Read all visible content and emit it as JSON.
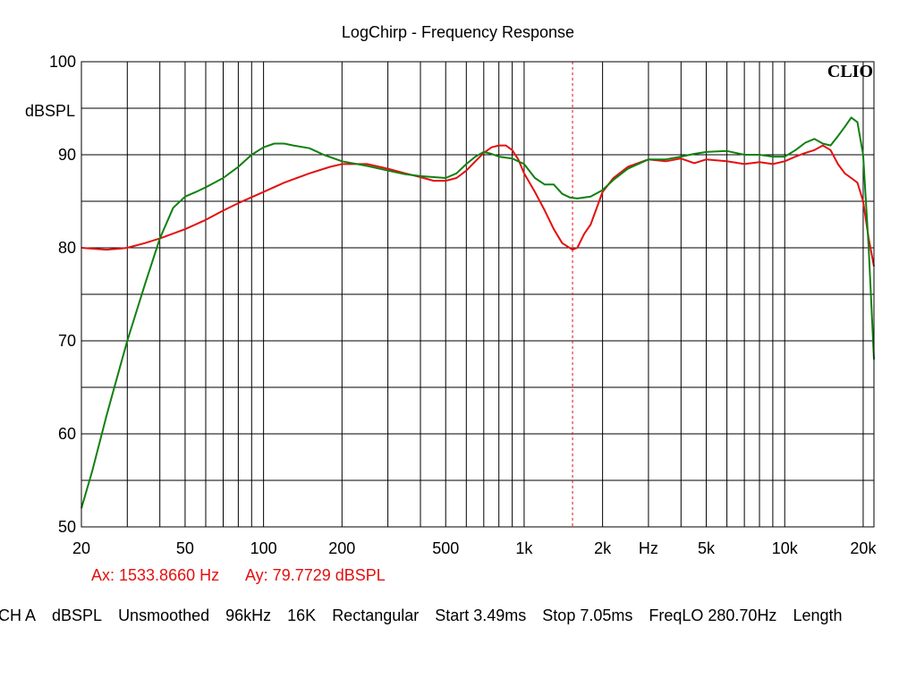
{
  "chart_data": {
    "type": "line",
    "title": "LogChirp - Frequency Response",
    "ylabel": "dBSPL",
    "xlabel": "",
    "x_scale": "log",
    "xlim": [
      20,
      22000
    ],
    "ylim": [
      50,
      100
    ],
    "grid": true,
    "y_ticks": [
      50,
      60,
      70,
      80,
      90,
      100
    ],
    "x_tick_labels": [
      {
        "value": 20,
        "label": "20"
      },
      {
        "value": 50,
        "label": "50"
      },
      {
        "value": 100,
        "label": "100"
      },
      {
        "value": 200,
        "label": "200"
      },
      {
        "value": 500,
        "label": "500"
      },
      {
        "value": 1000,
        "label": "1k"
      },
      {
        "value": 2000,
        "label": "2k"
      },
      {
        "value": 3000,
        "label": "Hz"
      },
      {
        "value": 5000,
        "label": "5k"
      },
      {
        "value": 10000,
        "label": "10k"
      },
      {
        "value": 20000,
        "label": "20k"
      }
    ],
    "series": [
      {
        "color": "#e31010",
        "points": [
          [
            20,
            80
          ],
          [
            22,
            79.9
          ],
          [
            25,
            79.8
          ],
          [
            28,
            79.9
          ],
          [
            30,
            80
          ],
          [
            35,
            80.5
          ],
          [
            40,
            81
          ],
          [
            50,
            82
          ],
          [
            60,
            83
          ],
          [
            70,
            84
          ],
          [
            80,
            84.8
          ],
          [
            100,
            86
          ],
          [
            120,
            87
          ],
          [
            150,
            88
          ],
          [
            180,
            88.7
          ],
          [
            200,
            89
          ],
          [
            250,
            89
          ],
          [
            300,
            88.5
          ],
          [
            350,
            88
          ],
          [
            400,
            87.6
          ],
          [
            450,
            87.2
          ],
          [
            500,
            87.2
          ],
          [
            550,
            87.5
          ],
          [
            600,
            88.3
          ],
          [
            650,
            89.3
          ],
          [
            700,
            90.2
          ],
          [
            750,
            90.8
          ],
          [
            800,
            91
          ],
          [
            850,
            91
          ],
          [
            900,
            90.5
          ],
          [
            950,
            89.5
          ],
          [
            1000,
            88
          ],
          [
            1100,
            86
          ],
          [
            1200,
            84
          ],
          [
            1300,
            82
          ],
          [
            1400,
            80.5
          ],
          [
            1533,
            79.8
          ],
          [
            1600,
            80
          ],
          [
            1700,
            81.5
          ],
          [
            1800,
            82.5
          ],
          [
            2000,
            86
          ],
          [
            2200,
            87.5
          ],
          [
            2500,
            88.7
          ],
          [
            3000,
            89.5
          ],
          [
            3500,
            89.3
          ],
          [
            4000,
            89.6
          ],
          [
            4500,
            89.1
          ],
          [
            5000,
            89.5
          ],
          [
            6000,
            89.3
          ],
          [
            7000,
            89
          ],
          [
            8000,
            89.2
          ],
          [
            9000,
            89
          ],
          [
            10000,
            89.3
          ],
          [
            11000,
            89.8
          ],
          [
            12000,
            90.2
          ],
          [
            13000,
            90.5
          ],
          [
            14000,
            91
          ],
          [
            15000,
            90.5
          ],
          [
            16000,
            89
          ],
          [
            17000,
            88
          ],
          [
            18000,
            87.5
          ],
          [
            19000,
            87
          ],
          [
            20000,
            85
          ],
          [
            21000,
            81
          ],
          [
            22000,
            78
          ]
        ]
      },
      {
        "color": "#108010",
        "points": [
          [
            20,
            52
          ],
          [
            22,
            56
          ],
          [
            25,
            62
          ],
          [
            28,
            67
          ],
          [
            30,
            70
          ],
          [
            35,
            76
          ],
          [
            40,
            81
          ],
          [
            45,
            84.3
          ],
          [
            50,
            85.5
          ],
          [
            55,
            86
          ],
          [
            60,
            86.5
          ],
          [
            70,
            87.5
          ],
          [
            80,
            88.7
          ],
          [
            90,
            90
          ],
          [
            100,
            90.8
          ],
          [
            110,
            91.2
          ],
          [
            120,
            91.2
          ],
          [
            130,
            91
          ],
          [
            150,
            90.7
          ],
          [
            170,
            90
          ],
          [
            200,
            89.3
          ],
          [
            250,
            88.8
          ],
          [
            300,
            88.3
          ],
          [
            350,
            87.9
          ],
          [
            400,
            87.7
          ],
          [
            450,
            87.6
          ],
          [
            500,
            87.5
          ],
          [
            550,
            88
          ],
          [
            600,
            89
          ],
          [
            650,
            89.8
          ],
          [
            700,
            90.3
          ],
          [
            750,
            90.1
          ],
          [
            800,
            89.8
          ],
          [
            900,
            89.6
          ],
          [
            1000,
            89
          ],
          [
            1100,
            87.5
          ],
          [
            1200,
            86.8
          ],
          [
            1300,
            86.8
          ],
          [
            1400,
            85.8
          ],
          [
            1500,
            85.4
          ],
          [
            1600,
            85.3
          ],
          [
            1800,
            85.5
          ],
          [
            2000,
            86.2
          ],
          [
            2200,
            87.3
          ],
          [
            2500,
            88.5
          ],
          [
            3000,
            89.5
          ],
          [
            3500,
            89.5
          ],
          [
            4000,
            89.8
          ],
          [
            4500,
            90.1
          ],
          [
            5000,
            90.3
          ],
          [
            6000,
            90.4
          ],
          [
            7000,
            90
          ],
          [
            8000,
            90
          ],
          [
            9000,
            89.8
          ],
          [
            10000,
            89.8
          ],
          [
            11000,
            90.5
          ],
          [
            12000,
            91.3
          ],
          [
            13000,
            91.7
          ],
          [
            14000,
            91.2
          ],
          [
            15000,
            91
          ],
          [
            16000,
            92
          ],
          [
            17000,
            93
          ],
          [
            18000,
            94
          ],
          [
            19000,
            93.5
          ],
          [
            20000,
            90
          ],
          [
            21000,
            80
          ],
          [
            22000,
            68
          ]
        ]
      }
    ]
  },
  "cursor": {
    "x_value": 1533.866,
    "color": "#e31010",
    "readout_ax": "Ax: 1533.8660 Hz",
    "readout_ay": "Ay: 79.7729 dBSPL"
  },
  "brand": {
    "logo_text": "CLIO"
  },
  "status": {
    "items": [
      "CH A",
      "dBSPL",
      "Unsmoothed",
      "96kHz",
      "16K",
      "Rectangular",
      "Start 3.49ms",
      "Stop 7.05ms",
      "FreqLO 280.70Hz",
      "Length"
    ]
  }
}
